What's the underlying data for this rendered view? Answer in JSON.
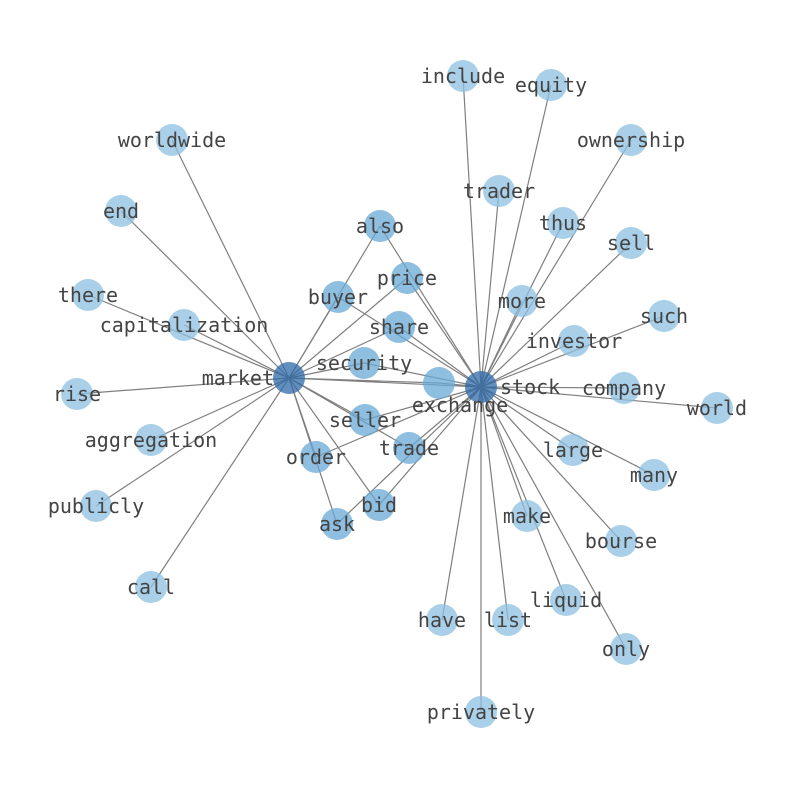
{
  "graph": {
    "node_colors": {
      "hub": "#2f6aa8",
      "shared": "#6aaad6",
      "leaf": "#8cc0e0"
    },
    "edge_color": "#7f7f7f",
    "nodes": [
      {
        "id": "stock",
        "label": "stock",
        "group": "hub"
      },
      {
        "id": "market",
        "label": "market",
        "group": "hub"
      },
      {
        "id": "include",
        "label": "include",
        "group": "leaf"
      },
      {
        "id": "equity",
        "label": "equity",
        "group": "leaf"
      },
      {
        "id": "ownership",
        "label": "ownership",
        "group": "leaf"
      },
      {
        "id": "worldwide",
        "label": "worldwide",
        "group": "leaf"
      },
      {
        "id": "trader",
        "label": "trader",
        "group": "leaf"
      },
      {
        "id": "end",
        "label": "end",
        "group": "leaf"
      },
      {
        "id": "also",
        "label": "also",
        "group": "shared"
      },
      {
        "id": "thus",
        "label": "thus",
        "group": "leaf"
      },
      {
        "id": "sell",
        "label": "sell",
        "group": "leaf"
      },
      {
        "id": "price",
        "label": "price",
        "group": "shared"
      },
      {
        "id": "there",
        "label": "there",
        "group": "leaf"
      },
      {
        "id": "buyer",
        "label": "buyer",
        "group": "shared"
      },
      {
        "id": "more",
        "label": "more",
        "group": "leaf"
      },
      {
        "id": "such",
        "label": "such",
        "group": "leaf"
      },
      {
        "id": "capitalization",
        "label": "capitalization",
        "group": "leaf"
      },
      {
        "id": "share",
        "label": "share",
        "group": "shared"
      },
      {
        "id": "investor",
        "label": "investor",
        "group": "leaf"
      },
      {
        "id": "security",
        "label": "security",
        "group": "shared"
      },
      {
        "id": "exchange",
        "label": "exchange",
        "group": "shared"
      },
      {
        "id": "company",
        "label": "company",
        "group": "leaf"
      },
      {
        "id": "rise",
        "label": "rise",
        "group": "leaf"
      },
      {
        "id": "world",
        "label": "world",
        "group": "leaf"
      },
      {
        "id": "seller",
        "label": "seller",
        "group": "shared"
      },
      {
        "id": "aggregation",
        "label": "aggregation",
        "group": "leaf"
      },
      {
        "id": "trade",
        "label": "trade",
        "group": "shared"
      },
      {
        "id": "large",
        "label": "large",
        "group": "leaf"
      },
      {
        "id": "order",
        "label": "order",
        "group": "shared"
      },
      {
        "id": "many",
        "label": "many",
        "group": "leaf"
      },
      {
        "id": "publicly",
        "label": "publicly",
        "group": "leaf"
      },
      {
        "id": "bid",
        "label": "bid",
        "group": "shared"
      },
      {
        "id": "make",
        "label": "make",
        "group": "leaf"
      },
      {
        "id": "ask",
        "label": "ask",
        "group": "shared"
      },
      {
        "id": "bourse",
        "label": "bourse",
        "group": "leaf"
      },
      {
        "id": "call",
        "label": "call",
        "group": "leaf"
      },
      {
        "id": "liquid",
        "label": "liquid",
        "group": "leaf"
      },
      {
        "id": "have",
        "label": "have",
        "group": "leaf"
      },
      {
        "id": "list",
        "label": "list",
        "group": "leaf"
      },
      {
        "id": "only",
        "label": "only",
        "group": "leaf"
      },
      {
        "id": "privately",
        "label": "privately",
        "group": "leaf"
      }
    ],
    "edges": [
      [
        "stock",
        "market"
      ],
      [
        "stock",
        "include"
      ],
      [
        "stock",
        "equity"
      ],
      [
        "stock",
        "ownership"
      ],
      [
        "stock",
        "trader"
      ],
      [
        "stock",
        "thus"
      ],
      [
        "stock",
        "sell"
      ],
      [
        "stock",
        "more"
      ],
      [
        "stock",
        "such"
      ],
      [
        "stock",
        "investor"
      ],
      [
        "stock",
        "company"
      ],
      [
        "stock",
        "world"
      ],
      [
        "stock",
        "large"
      ],
      [
        "stock",
        "many"
      ],
      [
        "stock",
        "make"
      ],
      [
        "stock",
        "bourse"
      ],
      [
        "stock",
        "liquid"
      ],
      [
        "stock",
        "have"
      ],
      [
        "stock",
        "list"
      ],
      [
        "stock",
        "only"
      ],
      [
        "stock",
        "privately"
      ],
      [
        "market",
        "worldwide"
      ],
      [
        "market",
        "end"
      ],
      [
        "market",
        "there"
      ],
      [
        "market",
        "capitalization"
      ],
      [
        "market",
        "rise"
      ],
      [
        "market",
        "aggregation"
      ],
      [
        "market",
        "publicly"
      ],
      [
        "market",
        "call"
      ],
      [
        "stock",
        "also"
      ],
      [
        "market",
        "also"
      ],
      [
        "stock",
        "price"
      ],
      [
        "market",
        "price"
      ],
      [
        "stock",
        "buyer"
      ],
      [
        "market",
        "buyer"
      ],
      [
        "stock",
        "share"
      ],
      [
        "market",
        "share"
      ],
      [
        "stock",
        "security"
      ],
      [
        "market",
        "security"
      ],
      [
        "stock",
        "exchange"
      ],
      [
        "market",
        "exchange"
      ],
      [
        "stock",
        "seller"
      ],
      [
        "market",
        "seller"
      ],
      [
        "stock",
        "order"
      ],
      [
        "market",
        "order"
      ],
      [
        "stock",
        "trade"
      ],
      [
        "market",
        "trade"
      ],
      [
        "stock",
        "bid"
      ],
      [
        "market",
        "bid"
      ],
      [
        "stock",
        "ask"
      ],
      [
        "market",
        "ask"
      ]
    ]
  }
}
